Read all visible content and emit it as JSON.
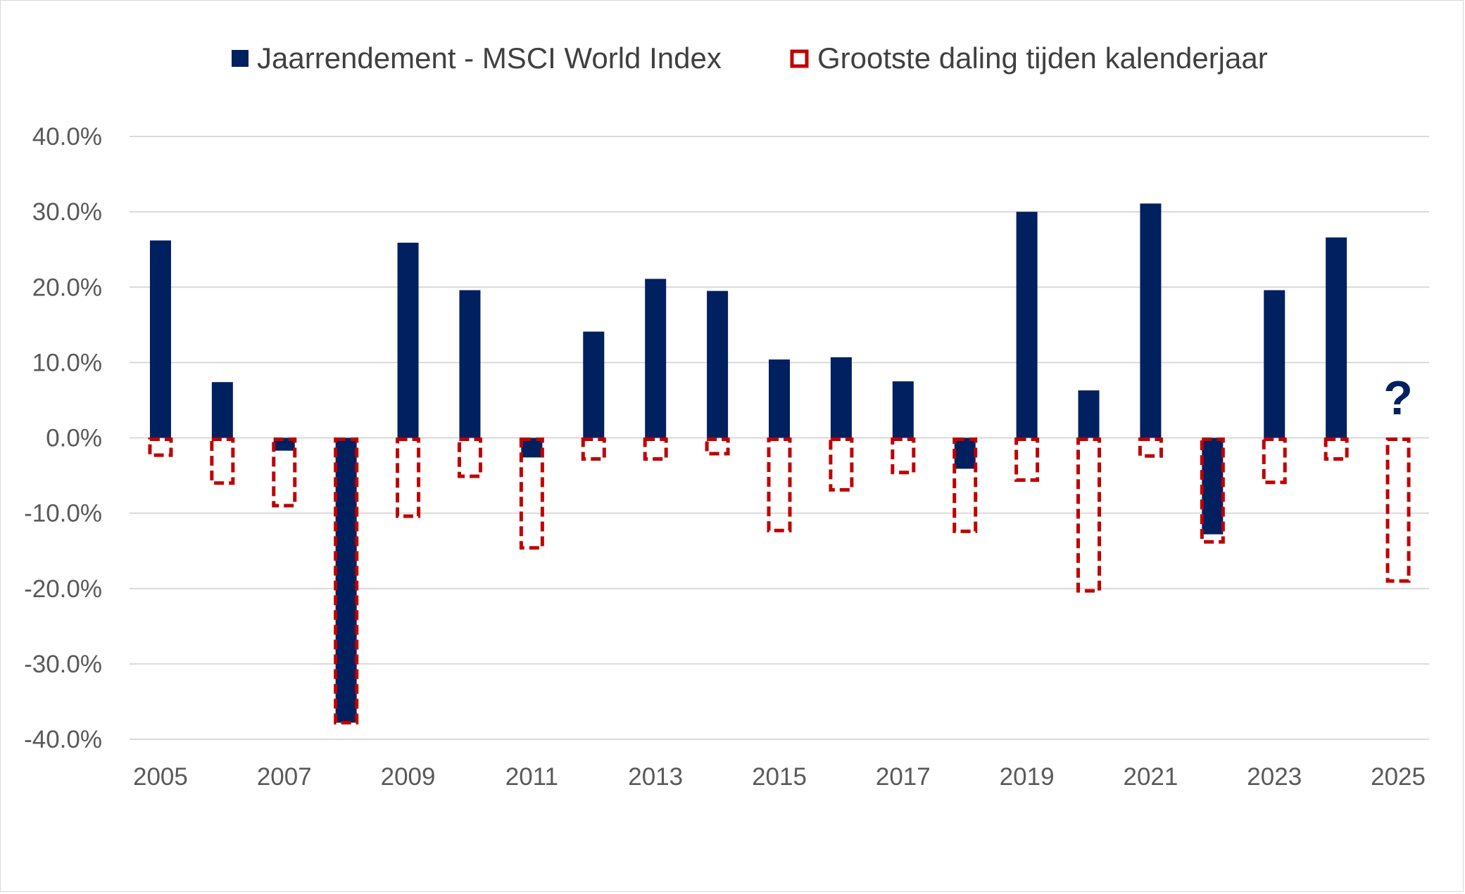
{
  "chart_data": {
    "type": "bar",
    "title": "",
    "xlabel": "",
    "ylabel": "",
    "ylim": [
      -40,
      40
    ],
    "y_ticks": [
      40,
      30,
      20,
      10,
      0,
      -10,
      -20,
      -30,
      -40
    ],
    "y_tick_labels": [
      "40.0%",
      "30.0%",
      "20.0%",
      "10.0%",
      "0.0%",
      "-10.0%",
      "-20.0%",
      "-30.0%",
      "-40.0%"
    ],
    "categories": [
      2005,
      2006,
      2007,
      2008,
      2009,
      2010,
      2011,
      2012,
      2013,
      2014,
      2015,
      2016,
      2017,
      2018,
      2019,
      2020,
      2021,
      2022,
      2023,
      2024,
      2025
    ],
    "x_tick_labels": [
      "2005",
      "2007",
      "2009",
      "2011",
      "2013",
      "2015",
      "2017",
      "2019",
      "2021",
      "2023",
      "2025"
    ],
    "grid": true,
    "legend_position": "top-center",
    "series": [
      {
        "name": "Jaarrendement - MSCI World Index",
        "style": "solid",
        "color": "#002060",
        "values": [
          26.2,
          7.4,
          -1.7,
          -37.8,
          25.9,
          19.6,
          -2.6,
          14.1,
          21.1,
          19.5,
          10.4,
          10.7,
          7.5,
          -4.1,
          30.0,
          6.3,
          31.1,
          -12.8,
          19.6,
          26.6,
          null
        ]
      },
      {
        "name": "Grootste daling tijden kalenderjaar",
        "style": "dashed-outline",
        "color": "#c00000",
        "values": [
          -2.3,
          -6.0,
          -9.0,
          -37.8,
          -10.4,
          -5.1,
          -14.6,
          -2.8,
          -2.8,
          -2.1,
          -12.3,
          -6.9,
          -4.6,
          -12.4,
          -5.6,
          -20.3,
          -2.4,
          -13.8,
          -5.9,
          -2.8,
          -19.0
        ]
      }
    ],
    "annotations": [
      {
        "text": "?",
        "category": 2025,
        "color": "#002060"
      }
    ]
  }
}
